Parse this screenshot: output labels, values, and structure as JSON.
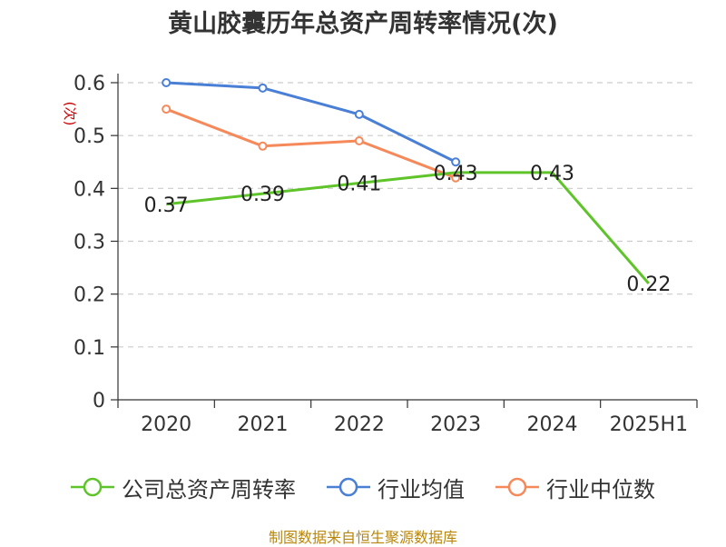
{
  "chart_data": {
    "type": "line",
    "title": "黄山胶囊历年总资产周转率情况(次)",
    "ylabel": "(次)",
    "categories": [
      "2020",
      "2021",
      "2022",
      "2023",
      "2024",
      "2025H1"
    ],
    "ylim": [
      0,
      0.6
    ],
    "yticks": [
      "0",
      "0.1",
      "0.2",
      "0.3",
      "0.4",
      "0.5",
      "0.6"
    ],
    "grid": true,
    "legend_position": "bottom",
    "series": [
      {
        "name": "公司总资产周转率",
        "color": "#5ec42a",
        "values": [
          0.37,
          0.39,
          0.41,
          0.43,
          0.43,
          0.22
        ],
        "labels": [
          "0.37",
          "0.39",
          "0.41",
          "0.43",
          "0.43",
          "0.22"
        ]
      },
      {
        "name": "行业均值",
        "color": "#4a7fd6",
        "values": [
          0.6,
          0.59,
          0.54,
          0.45,
          null,
          null
        ]
      },
      {
        "name": "行业中位数",
        "color": "#f5895a",
        "values": [
          0.55,
          0.48,
          0.49,
          0.42,
          null,
          null
        ]
      }
    ]
  },
  "source": "制图数据来自恒生聚源数据库"
}
